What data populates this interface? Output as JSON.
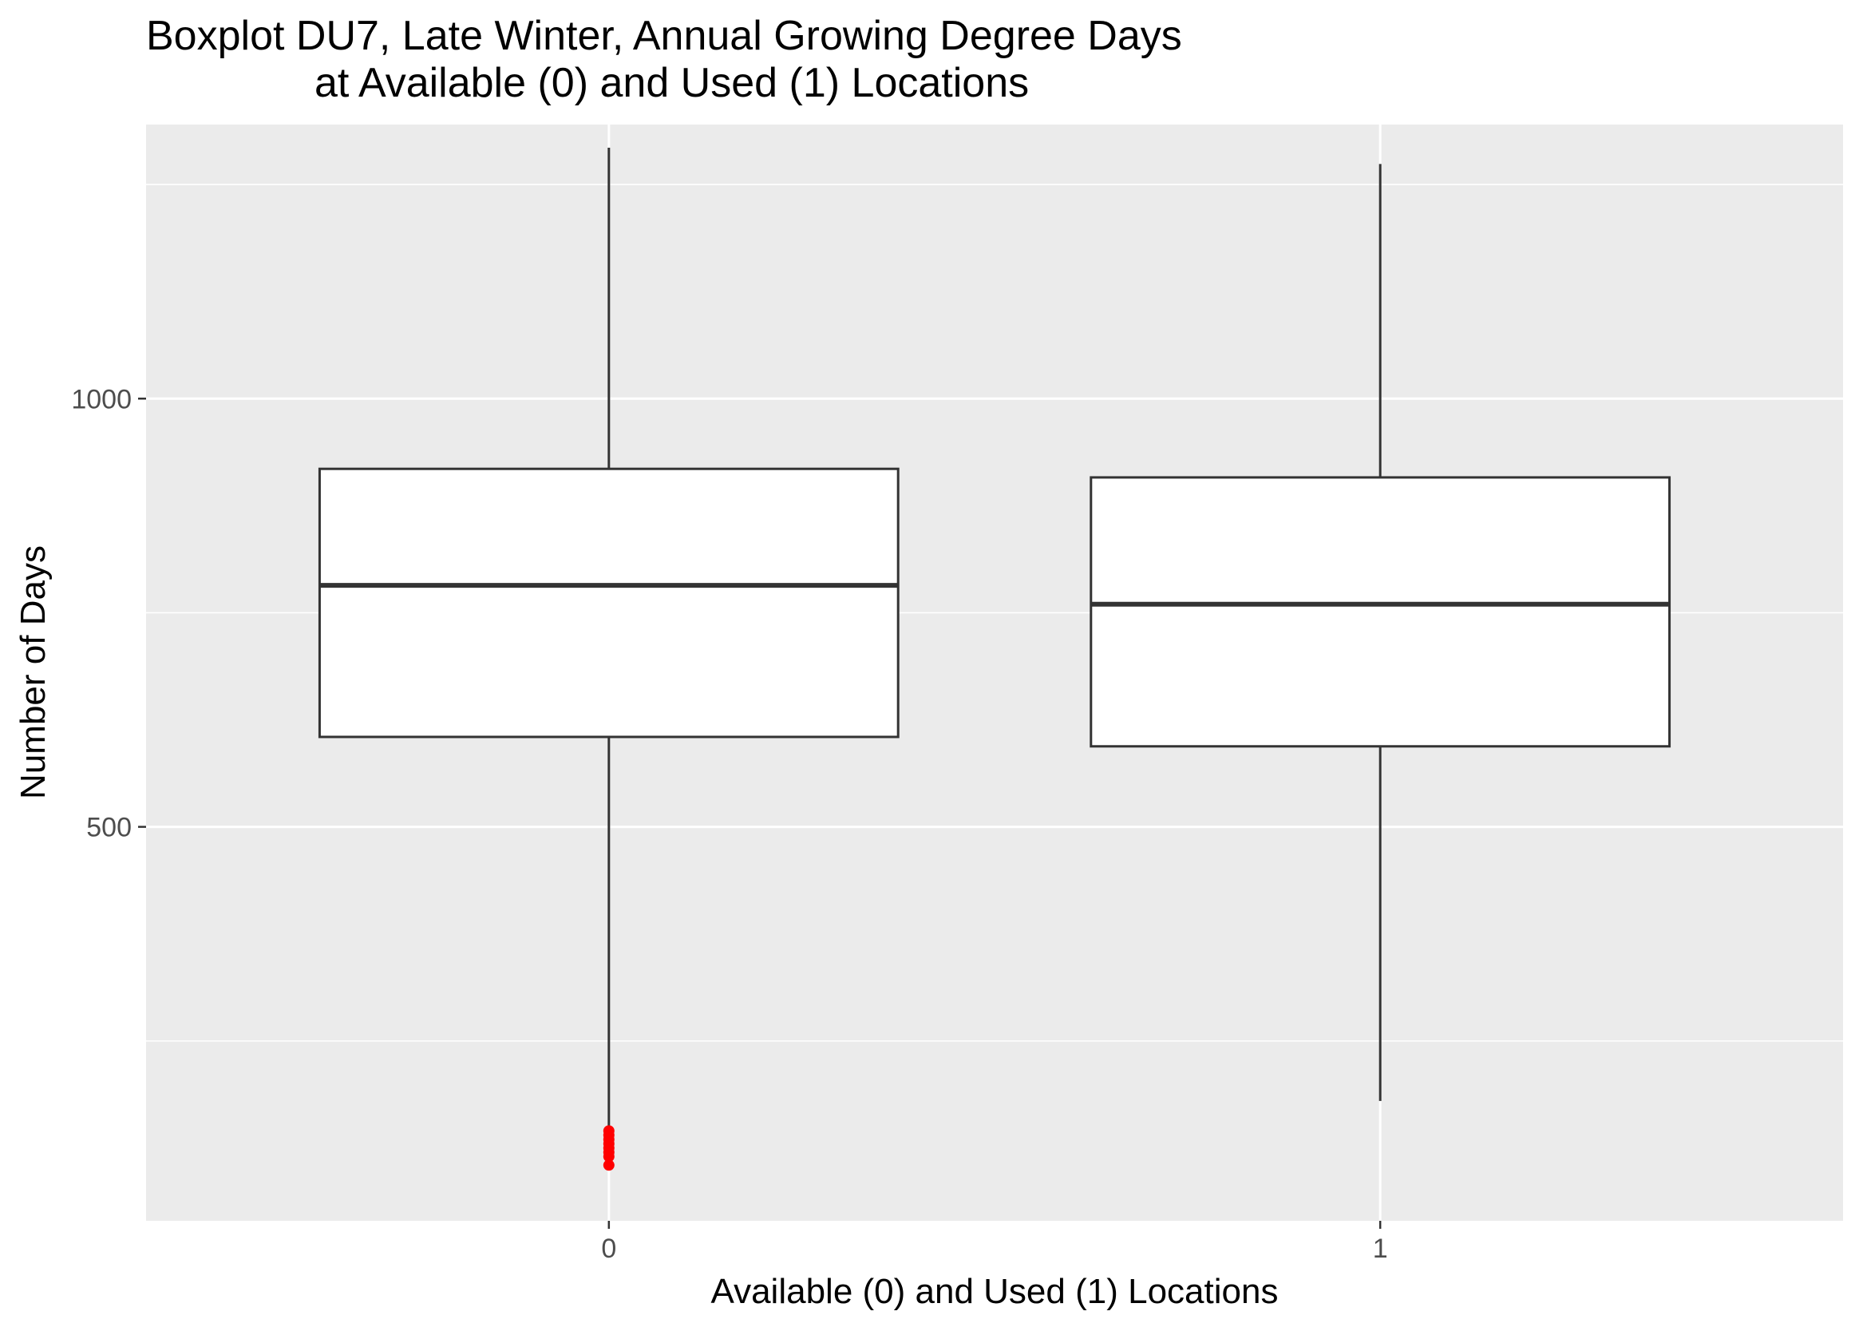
{
  "chart_data": {
    "type": "boxplot",
    "title_lines": [
      "Boxplot DU7, Late Winter, Annual Growing Degree Days",
      "at Available (0) and Used (1) Locations"
    ],
    "xlabel": "Available (0) and Used (1) Locations",
    "ylabel": "Number of Days",
    "categories": [
      "0",
      "1"
    ],
    "y_ticks": [
      {
        "value": 500,
        "label": "500"
      },
      {
        "value": 1000,
        "label": "1000"
      }
    ],
    "ylim": [
      40,
      1320
    ],
    "grid": true,
    "boxes": [
      {
        "category": "0",
        "lower_whisker": 148,
        "q1": 605,
        "median": 782,
        "q3": 918,
        "upper_whisker": 1293
      },
      {
        "category": "1",
        "lower_whisker": 180,
        "q1": 594,
        "median": 760,
        "q3": 908,
        "upper_whisker": 1274
      }
    ],
    "outliers": [
      {
        "category": "0",
        "values": [
          145,
          140,
          135,
          130,
          125,
          120,
          115,
          105
        ]
      }
    ],
    "colors": {
      "panel_background": "#ebebeb",
      "gridline": "#ffffff",
      "box_fill": "#ffffff",
      "box_stroke": "#333333",
      "outlier": "#ff0000",
      "tick_label": "#4d4d4d"
    }
  }
}
